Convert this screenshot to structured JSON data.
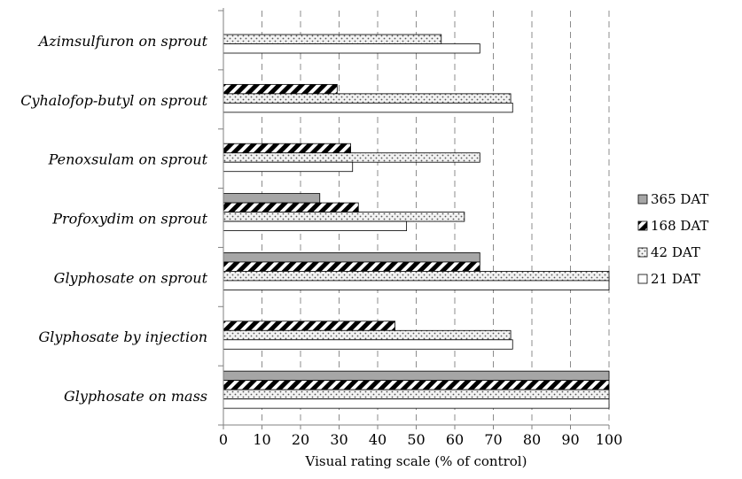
{
  "chart_data": {
    "type": "bar",
    "orientation": "horizontal",
    "xlabel": "Visual rating scale (% of control)",
    "ylabel": "",
    "title": "",
    "xlim": [
      0,
      100
    ],
    "xticks": [
      0,
      10,
      20,
      30,
      40,
      50,
      60,
      70,
      80,
      90,
      100
    ],
    "grid": "vertical dashed",
    "legend_position": "right",
    "categories": [
      "Azimsulfuron  on sprout",
      "Cyhalofop-butyl  on sprout",
      "Penoxsulam  on sprout",
      "Profoxydim  on sprout",
      "Glyphosate on sprout",
      "Glyphosate by injection",
      "Glyphosate on mass"
    ],
    "series": [
      {
        "name": "365 DAT",
        "pattern": "solid-gray",
        "color": "#a6a6a6",
        "values": [
          null,
          null,
          null,
          25,
          66.5,
          null,
          100
        ]
      },
      {
        "name": "168 DAT",
        "pattern": "diagonal-stripes",
        "color": "#000000",
        "values": [
          null,
          29.5,
          33,
          35,
          66.5,
          44.5,
          100
        ]
      },
      {
        "name": "42 DAT",
        "pattern": "dots",
        "color": "#bfbfbf",
        "values": [
          56.5,
          74.5,
          66.5,
          62.5,
          100,
          74.5,
          100
        ]
      },
      {
        "name": "21 DAT",
        "pattern": "white",
        "color": "#ffffff",
        "values": [
          66.5,
          75,
          33.5,
          47.5,
          100,
          75,
          100
        ]
      }
    ]
  }
}
